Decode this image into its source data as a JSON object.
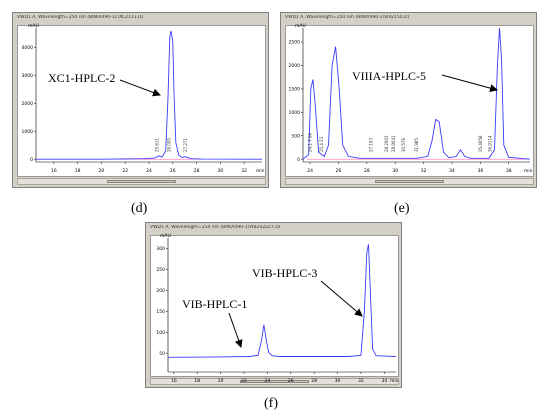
{
  "panels": [
    {
      "id": "d",
      "caption": "(d)",
      "title": "VWD1 A, Wavelength=254 nm (BIN\\A490-1C\\XC2111.D)",
      "y_unit": "mAU",
      "x_unit": "min",
      "annotation": "XC1-HPLC-2"
    },
    {
      "id": "e",
      "caption": "(e)",
      "title": "VWD1 A, Wavelength=254 nm (BIN\\A490-1\\VIII2150.D)",
      "y_unit": "mAU",
      "x_unit": "min",
      "annotation": "VIIIA-HPLC-5"
    },
    {
      "id": "f",
      "caption": "(f)",
      "title": "VWD1 A, Wavelength=254 nm (BIN\\A490-1\\VIB202227.D)",
      "y_unit": "mAU",
      "x_unit": "min",
      "annotation_1": "VIB-HPLC-1",
      "annotation_2": "VIB-HPLC-3"
    }
  ],
  "chart_data": [
    {
      "type": "line",
      "title": "VWD1 A, Wavelength=254 nm (BIN\\A490-1C\\XC2111.D)",
      "xlabel": "min",
      "ylabel": "mAU",
      "xlim": [
        14.5,
        33.5
      ],
      "ylim": [
        -100,
        4700
      ],
      "xticks": [
        16,
        18,
        20,
        22,
        24,
        26,
        28,
        30,
        32
      ],
      "yticks": [
        0,
        1000,
        2000,
        3000,
        4000
      ],
      "peak_labels": [
        {
          "x": 25.8,
          "text": "26.000"
        },
        {
          "x": 24.8,
          "text": "25.611"
        },
        {
          "x": 27.2,
          "text": "27.271"
        }
      ],
      "series": [
        {
          "color": "#3b3bff",
          "x": [
            14.5,
            20.0,
            23.5,
            24.5,
            24.8,
            25.1,
            25.4,
            25.6,
            25.75,
            25.85,
            26.0,
            26.1,
            26.25,
            26.5,
            26.8,
            27.0,
            27.2,
            27.5,
            28.5,
            33.5
          ],
          "y": [
            0,
            0,
            20,
            40,
            120,
            80,
            300,
            2200,
            4400,
            4600,
            4200,
            2400,
            600,
            150,
            60,
            90,
            70,
            20,
            5,
            0
          ]
        }
      ]
    },
    {
      "type": "line",
      "title": "VWD1 A, Wavelength=254 nm (BIN\\A490-1\\VIII2150.D)",
      "xlabel": "min",
      "ylabel": "mAU",
      "xlim": [
        23.5,
        39.5
      ],
      "ylim": [
        -60,
        2800
      ],
      "xticks": [
        24,
        26,
        28,
        30,
        32,
        34,
        36,
        38
      ],
      "yticks": [
        0,
        500,
        1000,
        1500,
        2000,
        2500
      ],
      "peak_labels": [
        {
          "x": 24.1,
          "text": "24.1 7 66"
        },
        {
          "x": 24.9,
          "text": "25.4 23"
        },
        {
          "x": 28.4,
          "text": "27.193"
        },
        {
          "x": 29.5,
          "text": "28.2003"
        },
        {
          "x": 30.0,
          "text": "28.9041"
        },
        {
          "x": 30.7,
          "text": "30.576"
        },
        {
          "x": 31.6,
          "text": "31.985"
        },
        {
          "x": 36.1,
          "text": "35.4658"
        },
        {
          "x": 36.8,
          "text": "36.9114"
        }
      ],
      "series": [
        {
          "color": "#3b3bff",
          "x": [
            23.5,
            23.9,
            24.05,
            24.2,
            24.35,
            24.6,
            25.0,
            25.3,
            25.55,
            25.8,
            26.05,
            26.3,
            26.7,
            27.5,
            28.5,
            30.0,
            31.5,
            32.3,
            32.6,
            32.85,
            33.1,
            33.4,
            33.8,
            34.3,
            34.6,
            34.9,
            35.3,
            36.0,
            36.6,
            37.0,
            37.2,
            37.35,
            37.5,
            37.65,
            38.0,
            39.5
          ],
          "y": [
            0,
            100,
            1500,
            1700,
            1200,
            150,
            60,
            300,
            2000,
            2400,
            1500,
            300,
            60,
            20,
            20,
            20,
            20,
            60,
            400,
            850,
            800,
            150,
            30,
            60,
            200,
            60,
            20,
            20,
            20,
            200,
            2000,
            2800,
            2100,
            300,
            40,
            0
          ]
        }
      ]
    },
    {
      "type": "line",
      "title": "VWD1 A, Wavelength=254 nm (BIN\\A490-1\\VIB202227.D)",
      "xlabel": "min",
      "ylabel": "mAU",
      "xlim": [
        15.5,
        35.0
      ],
      "ylim": [
        5,
        325
      ],
      "xticks": [
        16,
        18,
        20,
        22,
        24,
        26,
        28,
        30,
        32,
        34
      ],
      "yticks": [
        50,
        100,
        150,
        200,
        250,
        300
      ],
      "series": [
        {
          "color": "#3b3bff",
          "x": [
            15.5,
            20.0,
            22.5,
            23.2,
            23.5,
            23.7,
            23.9,
            24.1,
            24.4,
            25.0,
            28.0,
            31.0,
            32.0,
            32.3,
            32.5,
            32.65,
            32.8,
            33.0,
            33.3,
            35.0
          ],
          "y": [
            40,
            41,
            42,
            45,
            80,
            118,
            82,
            52,
            44,
            42,
            42,
            42,
            45,
            150,
            290,
            310,
            200,
            60,
            44,
            42
          ]
        }
      ]
    }
  ]
}
